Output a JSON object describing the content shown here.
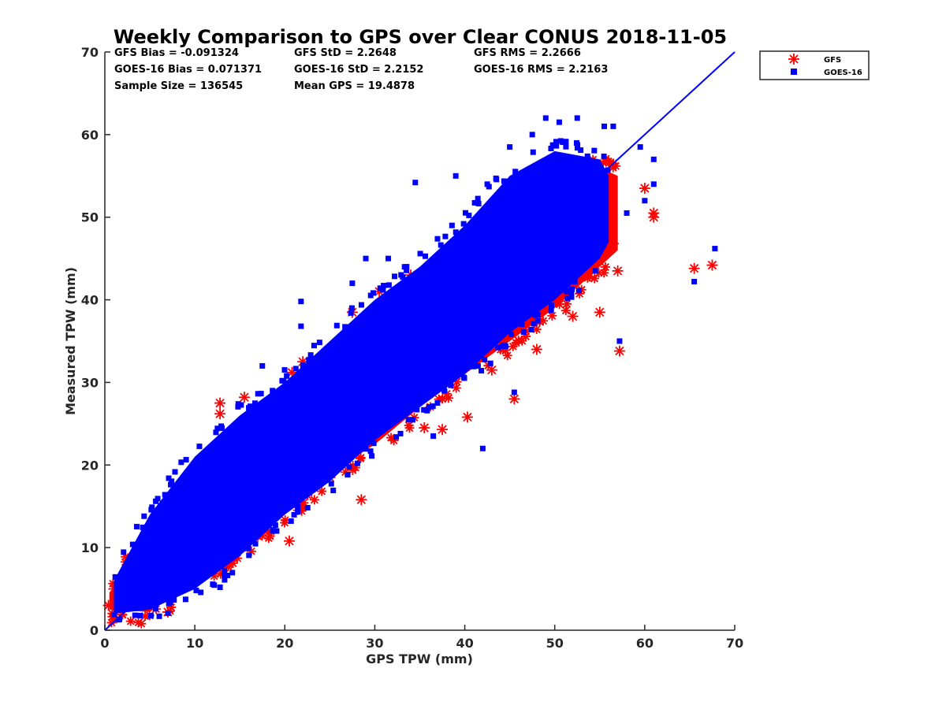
{
  "chart_data": {
    "type": "scatter",
    "title": "Weekly Comparison to GPS over Clear CONUS 2018-11-05",
    "xlabel": "GPS TPW (mm)",
    "ylabel": "Measured TPW (mm)",
    "xlim": [
      0,
      70
    ],
    "ylim": [
      0,
      70
    ],
    "xticks": [
      "0",
      "10",
      "20",
      "30",
      "40",
      "50",
      "60",
      "70"
    ],
    "yticks": [
      "0",
      "10",
      "20",
      "30",
      "40",
      "50",
      "60",
      "70"
    ],
    "grid": false,
    "legend_position": "outside-top-right",
    "reference_line": {
      "name": "1:1",
      "x": [
        0,
        70
      ],
      "y": [
        0,
        70
      ],
      "color": "#0000ff"
    },
    "stats": [
      [
        "GFS Bias = -0.091324",
        "GFS StD = 2.2648",
        "GFS RMS = 2.2666"
      ],
      [
        "GOES-16 Bias = 0.071371",
        "GOES-16 StD = 2.2152",
        "GOES-16 RMS = 2.2163"
      ],
      [
        "Sample Size = 136545",
        "Mean GPS = 19.4878"
      ]
    ],
    "series": [
      {
        "name": "GFS",
        "marker": "asterisk",
        "color": "#ff0000",
        "dense_band": {
          "x": [
            0.5,
            5,
            10,
            15,
            20,
            25,
            30,
            35,
            40,
            45,
            50,
            55,
            57
          ],
          "y_low": [
            2.5,
            2.2,
            6,
            10,
            14,
            19,
            22.5,
            27,
            31,
            35,
            39,
            44,
            46
          ],
          "y_high": [
            4.5,
            12,
            17,
            22,
            27,
            32,
            37,
            41,
            46,
            49,
            53,
            56,
            55
          ]
        },
        "outliers": [
          {
            "x": 0.4,
            "y": 3.0
          },
          {
            "x": 1.0,
            "y": 5.0
          },
          {
            "x": 8.6,
            "y": 17.5
          },
          {
            "x": 12.8,
            "y": 27.5
          },
          {
            "x": 12.8,
            "y": 26.2
          },
          {
            "x": 15.5,
            "y": 28.2
          },
          {
            "x": 20.8,
            "y": 31.2
          },
          {
            "x": 21.0,
            "y": 28.5
          },
          {
            "x": 22.0,
            "y": 32.5
          },
          {
            "x": 27.5,
            "y": 38.5
          },
          {
            "x": 30.5,
            "y": 41.0
          },
          {
            "x": 34.0,
            "y": 43.0
          },
          {
            "x": 36.5,
            "y": 44.5
          },
          {
            "x": 35.5,
            "y": 24.5
          },
          {
            "x": 37.5,
            "y": 24.3
          },
          {
            "x": 40.3,
            "y": 25.8
          },
          {
            "x": 45.5,
            "y": 28.0
          },
          {
            "x": 28.5,
            "y": 15.8
          },
          {
            "x": 25.0,
            "y": 18.5
          },
          {
            "x": 22.5,
            "y": 17.0
          },
          {
            "x": 20.5,
            "y": 10.8
          },
          {
            "x": 7.0,
            "y": 2.2
          },
          {
            "x": 57.2,
            "y": 33.8
          },
          {
            "x": 57.0,
            "y": 43.5
          },
          {
            "x": 56.5,
            "y": 46.8
          },
          {
            "x": 61.0,
            "y": 50.5
          },
          {
            "x": 60.0,
            "y": 53.5
          },
          {
            "x": 61.0,
            "y": 50.0
          },
          {
            "x": 65.5,
            "y": 43.8
          },
          {
            "x": 67.5,
            "y": 44.2
          },
          {
            "x": 52.0,
            "y": 38.0
          },
          {
            "x": 48.0,
            "y": 34.0
          },
          {
            "x": 43.0,
            "y": 31.5
          },
          {
            "x": 55.0,
            "y": 38.5
          },
          {
            "x": 54.0,
            "y": 47.5
          },
          {
            "x": 55.0,
            "y": 50.0
          }
        ]
      },
      {
        "name": "GOES-16",
        "marker": "square",
        "color": "#0000ff",
        "dense_band": {
          "x": [
            1,
            5,
            10,
            15,
            20,
            25,
            30,
            35,
            40,
            45,
            50,
            55,
            56
          ],
          "y_low": [
            2,
            2.5,
            5,
            9,
            14,
            18,
            23,
            27,
            31,
            36,
            40,
            45,
            47
          ],
          "y_high": [
            6,
            14,
            21,
            26,
            30,
            35,
            40,
            44,
            49,
            55,
            58,
            57,
            55
          ]
        },
        "outliers": [
          {
            "x": 21.8,
            "y": 39.8
          },
          {
            "x": 21.8,
            "y": 36.8
          },
          {
            "x": 17.5,
            "y": 32.0
          },
          {
            "x": 27.5,
            "y": 42.0
          },
          {
            "x": 34.5,
            "y": 54.2
          },
          {
            "x": 39.0,
            "y": 55.0
          },
          {
            "x": 45.0,
            "y": 58.5
          },
          {
            "x": 47.5,
            "y": 60.0
          },
          {
            "x": 49.0,
            "y": 62.0
          },
          {
            "x": 50.5,
            "y": 61.5
          },
          {
            "x": 52.5,
            "y": 62.0
          },
          {
            "x": 55.5,
            "y": 61.0
          },
          {
            "x": 56.5,
            "y": 61.0
          },
          {
            "x": 59.5,
            "y": 58.5
          },
          {
            "x": 61.0,
            "y": 57.0
          },
          {
            "x": 61.0,
            "y": 54.0
          },
          {
            "x": 60.0,
            "y": 52.0
          },
          {
            "x": 12.8,
            "y": 5.2
          },
          {
            "x": 57.2,
            "y": 35.0
          },
          {
            "x": 65.5,
            "y": 42.2
          },
          {
            "x": 67.8,
            "y": 46.2
          },
          {
            "x": 36.5,
            "y": 23.5
          },
          {
            "x": 42.0,
            "y": 22.0
          },
          {
            "x": 45.5,
            "y": 28.8
          },
          {
            "x": 58.0,
            "y": 50.5
          },
          {
            "x": 42.5,
            "y": 54.0
          },
          {
            "x": 29.0,
            "y": 45.0
          },
          {
            "x": 31.5,
            "y": 45.0
          }
        ]
      }
    ]
  }
}
